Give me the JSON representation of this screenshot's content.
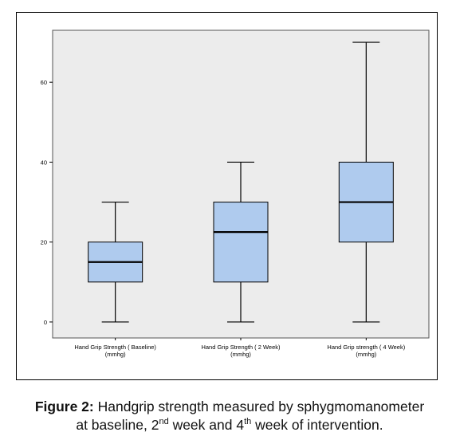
{
  "chart_data": {
    "type": "boxplot",
    "categories": [
      [
        "Hand Grip Strength ( Baseline)",
        "(mmhg)"
      ],
      [
        "Hand Grip Strength ( 2 Week)",
        "(mmhg)"
      ],
      [
        "Hand Grip strength ( 4 Week)",
        "(mmhg)"
      ]
    ],
    "boxes": [
      {
        "min": 0,
        "q1": 10,
        "median": 15,
        "q3": 20,
        "max": 30
      },
      {
        "min": 0,
        "q1": 10,
        "median": 22.5,
        "q3": 30,
        "max": 40
      },
      {
        "min": 0,
        "q1": 20,
        "median": 30,
        "q3": 40,
        "max": 70
      }
    ],
    "y_ticks": [
      0,
      20,
      40,
      60
    ],
    "ylim": [
      -4,
      73
    ],
    "grid": false,
    "colors": {
      "box_fill": "#afcbee",
      "plot_bg": "#ececec",
      "line": "#000000"
    }
  },
  "caption": {
    "label": "Figure 2:",
    "line1": "Handgrip strength measured by sphygmomanometer",
    "line2_a": "at baseline, 2",
    "sup1": "nd",
    "line2_b": " week and 4",
    "sup2": "th",
    "line2_c": " week of intervention."
  }
}
